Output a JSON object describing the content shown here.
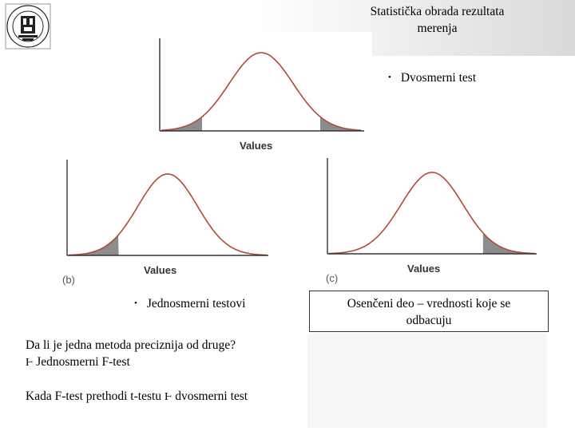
{
  "header": {
    "title_line1": "Statistička obrada rezultata",
    "title_line2": "merenja",
    "logo_icon": "university-seal-icon"
  },
  "figures": [
    {
      "id": "a",
      "axis_title": "Values",
      "label": "",
      "shaded_tails": "both"
    },
    {
      "id": "b",
      "axis_title": "Values",
      "label": "(b)",
      "shaded_tails": "left"
    },
    {
      "id": "c",
      "axis_title": "Values",
      "label": "(c)",
      "shaded_tails": "right"
    }
  ],
  "bullets": {
    "two_sided": "Dvosmerni test",
    "one_sided": "Jednosmerni testovi",
    "bullet_symbol": "•"
  },
  "note": {
    "line1": "Osenčeni deo – vrednosti koje se",
    "line2": "odbacuju"
  },
  "body": {
    "question": "Da li je jedna metoda preciznija od druge?",
    "answer_prefix": "Jednosmerni F-test",
    "line3_prefix": "Kada F-test prethodi t-testu",
    "line3_suffix": "dvosmerni test",
    "arrow_symbol": "Ⱶ"
  },
  "colors": {
    "curve": "#b04a3a",
    "shade": "#8c8c8c",
    "axis": "#333333"
  }
}
